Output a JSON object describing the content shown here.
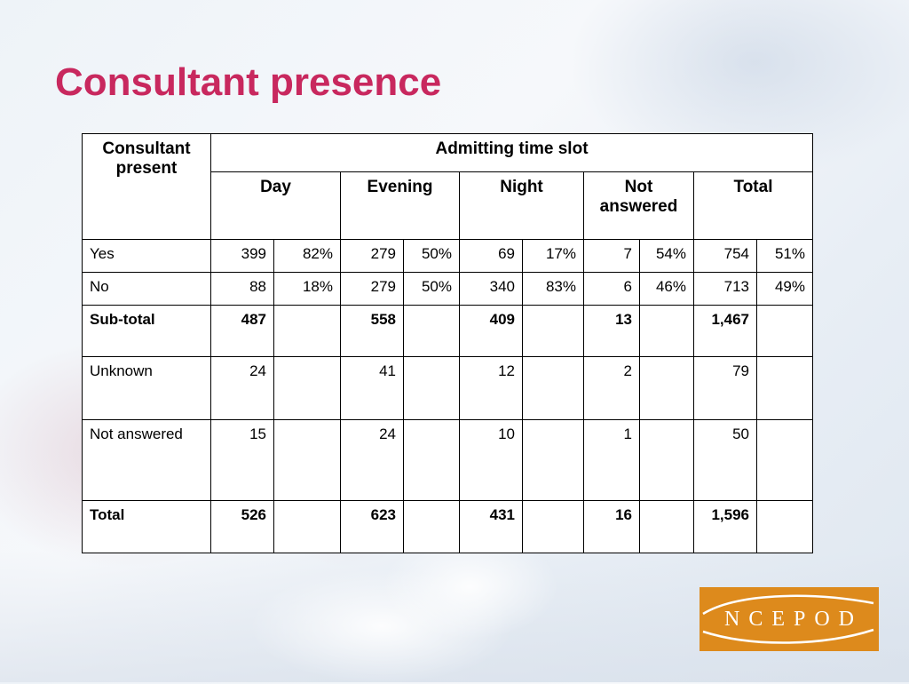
{
  "title": "Consultant presence",
  "table": {
    "corner_header": "Consultant present",
    "group_header": "Admitting time slot",
    "columns": [
      "Day",
      "Evening",
      "Night",
      "Not answered",
      "Total"
    ],
    "rows": [
      {
        "label": "Yes",
        "bold": false,
        "cells": [
          "399",
          "82%",
          "279",
          "50%",
          "69",
          "17%",
          "7",
          "54%",
          "754",
          "51%"
        ]
      },
      {
        "label": "No",
        "bold": false,
        "cells": [
          "88",
          "18%",
          "279",
          "50%",
          "340",
          "83%",
          "6",
          "46%",
          "713",
          "49%"
        ]
      },
      {
        "label": "Sub-total",
        "bold": true,
        "cells": [
          "487",
          "",
          "558",
          "",
          "409",
          "",
          "13",
          "",
          "1,467",
          ""
        ]
      },
      {
        "label": "Unknown",
        "bold": false,
        "cells": [
          "24",
          "",
          "41",
          "",
          "12",
          "",
          "2",
          "",
          "79",
          ""
        ]
      },
      {
        "label": "Not answered",
        "bold": false,
        "cells": [
          "15",
          "",
          "24",
          "",
          "10",
          "",
          "1",
          "",
          "50",
          ""
        ]
      },
      {
        "label": "Total",
        "bold": true,
        "cells": [
          "526",
          "",
          "623",
          "",
          "431",
          "",
          "16",
          "",
          "1,596",
          ""
        ]
      }
    ]
  },
  "logo": {
    "text": "NCEPOD",
    "color": "#dd8a1c"
  }
}
